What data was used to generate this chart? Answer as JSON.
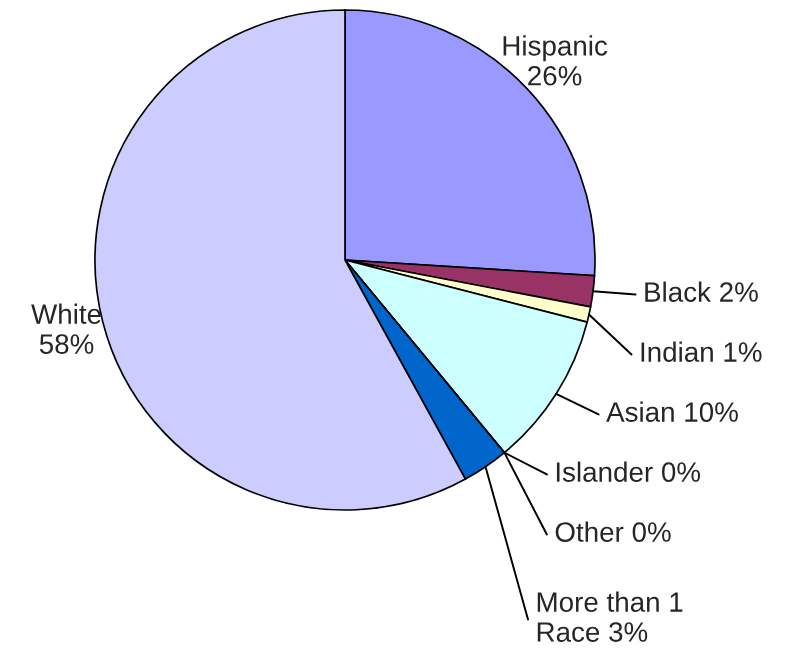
{
  "chart_data": {
    "type": "pie",
    "categories": [
      "Hispanic",
      "Black",
      "Indian",
      "Asian",
      "Islander",
      "Other",
      "More than 1 Race",
      "White"
    ],
    "values": [
      26,
      2,
      1,
      10,
      0,
      0,
      3,
      58
    ],
    "colors": [
      "#9999ff",
      "#993366",
      "#ffffcc",
      "#ccffff",
      "#660066",
      "#ff8080",
      "#0066cc",
      "#ccccff"
    ],
    "value_labels": [
      "26%",
      "2%",
      "1%",
      "10%",
      "0%",
      "0%",
      "3%",
      "58%"
    ]
  }
}
